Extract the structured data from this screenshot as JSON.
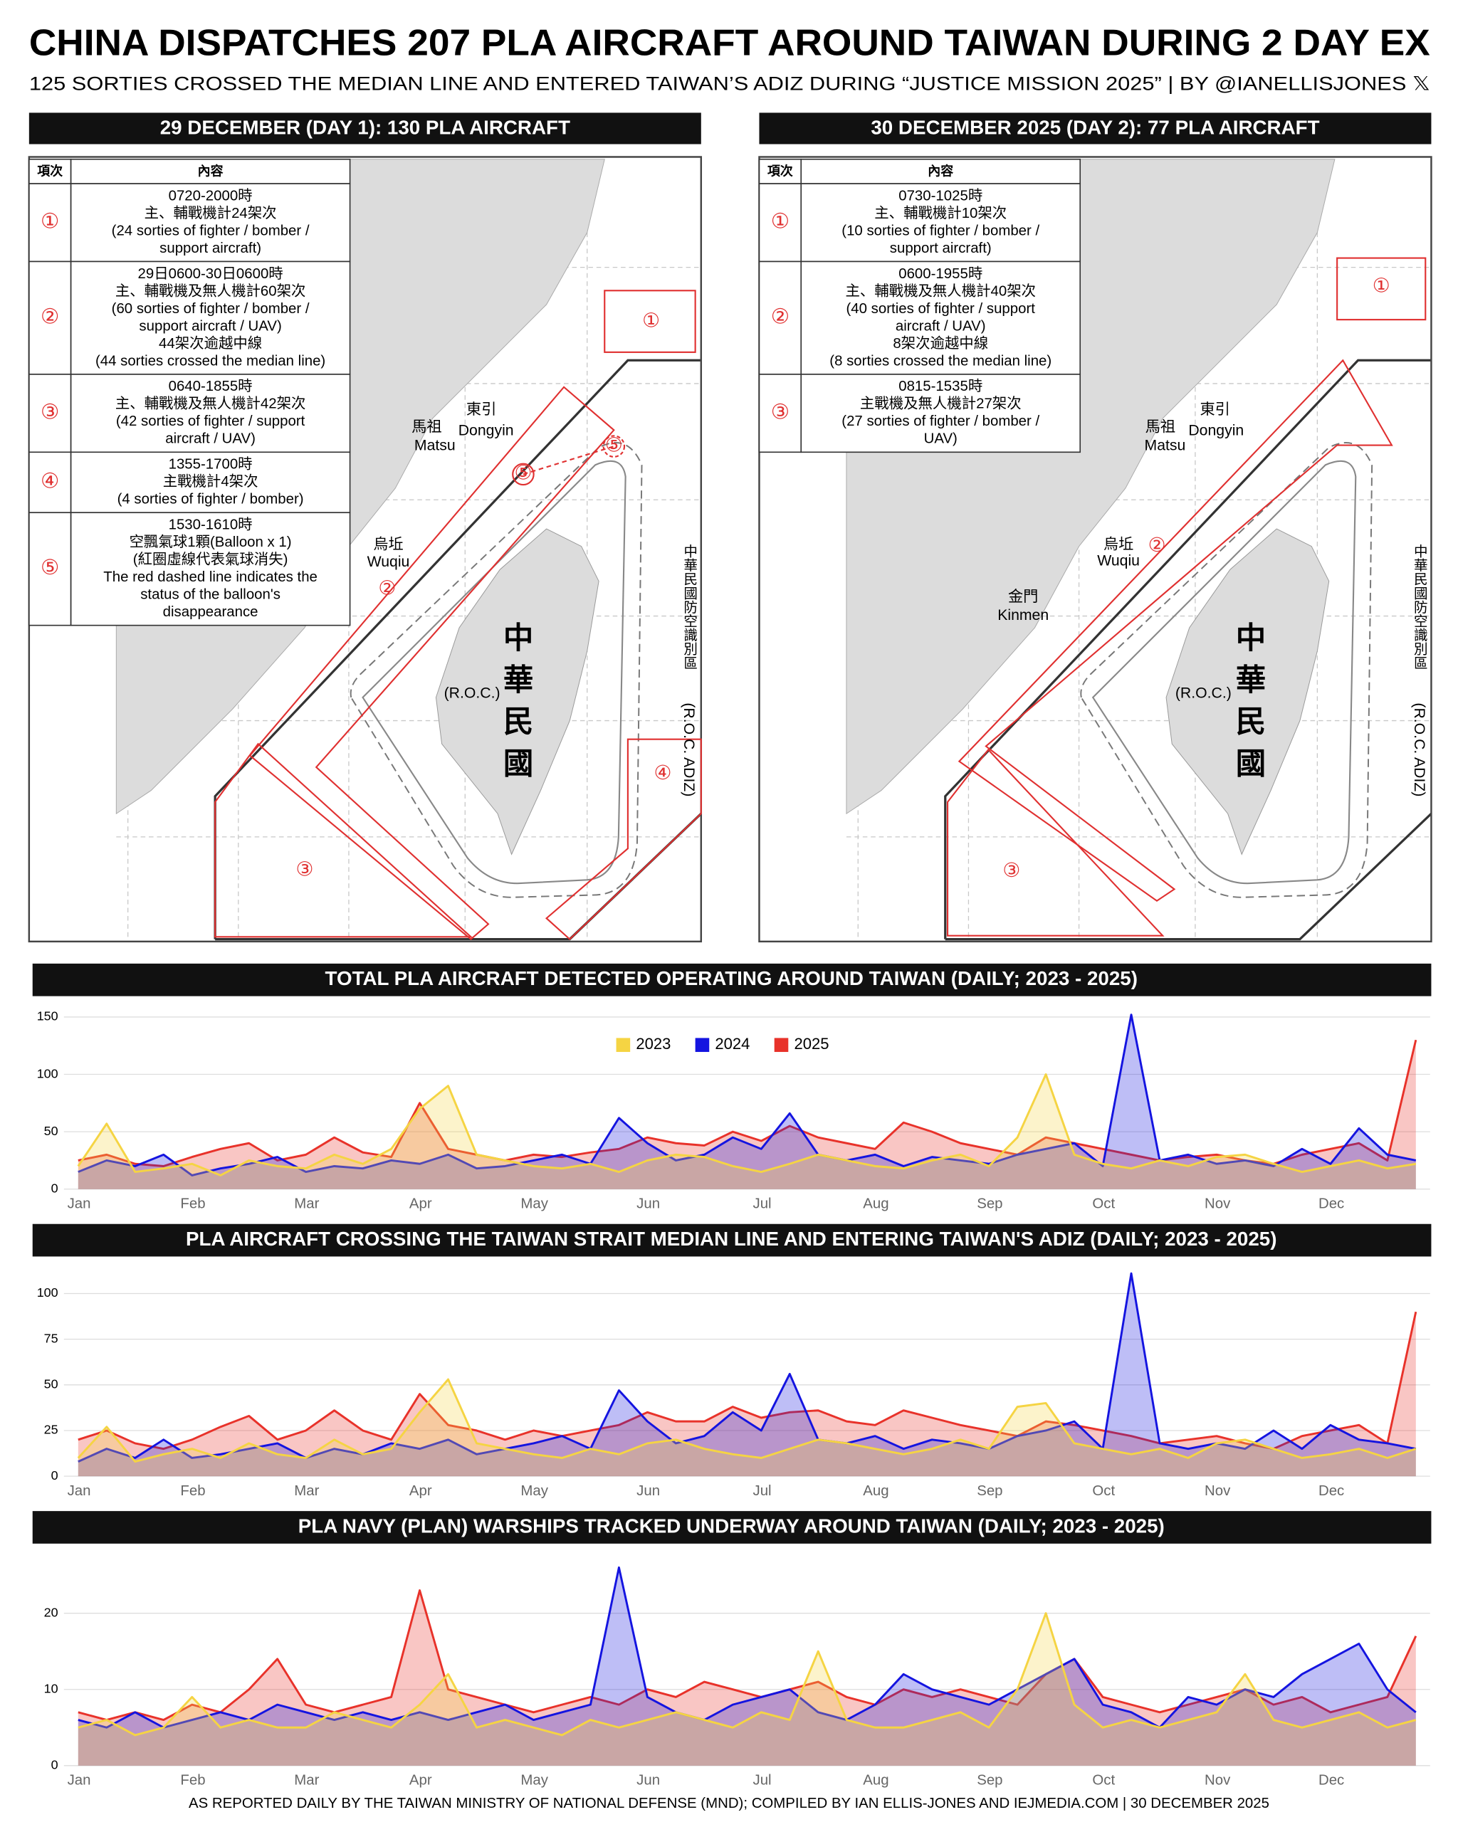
{
  "header": {
    "title": "CHINA DISPATCHES 207 PLA AIRCRAFT AROUND TAIWAN DURING 2 DAY EX",
    "subtitle": "125 SORTIES CROSSED THE MEDIAN LINE AND ENTERED TAIWAN’S ADIZ DURING “JUSTICE MISSION 2025” | BY @IANELLISJONES 𝕏"
  },
  "panels": [
    {
      "title": "29 DECEMBER (DAY 1): 130 PLA AIRCRAFT",
      "table_header": [
        "項次",
        "內容"
      ],
      "rows": [
        {
          "num": "①",
          "lines": [
            "0720-2000時",
            "主、輔戰機計24架次",
            "(24 sorties of fighter / bomber /",
            "support aircraft)"
          ]
        },
        {
          "num": "②",
          "lines": [
            "29日0600-30日0600時",
            "主、輔戰機及無人機計60架次",
            "(60 sorties of fighter / bomber /",
            "support aircraft / UAV)",
            "44架次逾越中線",
            "(44 sorties crossed the median line)"
          ]
        },
        {
          "num": "③",
          "lines": [
            "0640-1855時",
            "主、輔戰機及無人機計42架次",
            "(42 sorties of fighter / support",
            "aircraft /  UAV)"
          ]
        },
        {
          "num": "④",
          "lines": [
            "1355-1700時",
            "主戰機計4架次",
            "(4 sorties of fighter / bomber)"
          ]
        },
        {
          "num": "⑤",
          "lines": [
            "1530-1610時",
            "空飄氣球1顆(Balloon x 1)",
            "(紅圈虛線代表氣球消失)",
            "The red dashed line indicates the",
            "status of the balloon's",
            "disappearance"
          ]
        }
      ],
      "map_labels": [
        "①",
        "②",
        "③",
        "④",
        "⑤",
        "⑤",
        "馬祖",
        "Matsu",
        "東引",
        "Dongyin",
        "烏坵",
        "Wuqiu",
        "中華民國",
        "(R.O.C.)",
        "中華民國防空識別區",
        "(R.O.C. ADIZ)"
      ]
    },
    {
      "title": "30 DECEMBER 2025 (DAY 2): 77 PLA AIRCRAFT",
      "table_header": [
        "項次",
        "內容"
      ],
      "rows": [
        {
          "num": "①",
          "lines": [
            "0730-1025時",
            "主、輔戰機計10架次",
            "(10 sorties of fighter / bomber /",
            "support aircraft)"
          ]
        },
        {
          "num": "②",
          "lines": [
            "0600-1955時",
            "主、輔戰機及無人機計40架次",
            "(40 sorties of fighter / support",
            "aircraft / UAV)",
            "8架次逾越中線",
            "(8 sorties crossed the median line)"
          ]
        },
        {
          "num": "③",
          "lines": [
            "0815-1535時",
            "主戰機及無人機計27架次",
            "(27 sorties of fighter / bomber /",
            "UAV)"
          ]
        }
      ],
      "map_labels": [
        "①",
        "②",
        "③",
        "馬祖",
        "Matsu",
        "東引",
        "Dongyin",
        "烏坵",
        "Wuqiu",
        "金門",
        "Kinmen",
        "中華民國",
        "(R.O.C.)",
        "中華民國防空識別區",
        "(R.O.C. ADIZ)"
      ]
    }
  ],
  "chart_data": [
    {
      "type": "line",
      "title": "TOTAL PLA AIRCRAFT DETECTED OPERATING AROUND TAIWAN (DAILY; 2023 - 2025)",
      "categories": [
        "Jan",
        null,
        null,
        null,
        "Feb",
        null,
        null,
        null,
        "Mar",
        null,
        null,
        null,
        "Apr",
        null,
        null,
        null,
        "May",
        null,
        null,
        null,
        "Jun",
        null,
        null,
        null,
        "Jul",
        null,
        null,
        null,
        "Aug",
        null,
        null,
        null,
        "Sep",
        null,
        null,
        null,
        "Oct",
        null,
        null,
        null,
        "Nov",
        null,
        null,
        null,
        "Dec",
        null,
        null,
        null
      ],
      "series": [
        {
          "name": "2023",
          "color": "#f5d443",
          "values": [
            20,
            57,
            15,
            18,
            22,
            12,
            25,
            20,
            18,
            30,
            22,
            35,
            70,
            90,
            30,
            25,
            20,
            18,
            22,
            15,
            25,
            30,
            28,
            20,
            15,
            22,
            30,
            25,
            20,
            18,
            25,
            30,
            20,
            45,
            100,
            30,
            22,
            18,
            25,
            20,
            28,
            30,
            22,
            15,
            20,
            25,
            18,
            22
          ]
        },
        {
          "name": "2024",
          "color": "#1414e0",
          "values": [
            15,
            25,
            20,
            30,
            12,
            18,
            22,
            28,
            15,
            20,
            18,
            25,
            22,
            30,
            18,
            20,
            25,
            30,
            22,
            62,
            40,
            25,
            30,
            45,
            35,
            66,
            30,
            25,
            30,
            20,
            28,
            25,
            22,
            30,
            35,
            40,
            20,
            152,
            25,
            30,
            22,
            25,
            20,
            35,
            22,
            53,
            30,
            25
          ]
        },
        {
          "name": "2025",
          "color": "#e8322a",
          "values": [
            25,
            30,
            22,
            20,
            28,
            35,
            40,
            25,
            30,
            45,
            32,
            28,
            75,
            35,
            30,
            25,
            30,
            28,
            32,
            35,
            45,
            40,
            38,
            50,
            42,
            55,
            45,
            40,
            35,
            58,
            50,
            40,
            35,
            30,
            45,
            40,
            35,
            30,
            25,
            28,
            30,
            25,
            22,
            30,
            35,
            40,
            25,
            130
          ]
        }
      ],
      "ylim": [
        0,
        155
      ],
      "yticks": [
        0,
        50,
        100,
        150
      ],
      "grid": true,
      "legend": "top"
    },
    {
      "type": "line",
      "title": "PLA AIRCRAFT CROSSING THE TAIWAN STRAIT MEDIAN LINE AND ENTERING TAIWAN'S ADIZ (DAILY; 2023 - 2025)",
      "categories": [
        "Jan",
        null,
        null,
        null,
        "Feb",
        null,
        null,
        null,
        "Mar",
        null,
        null,
        null,
        "Apr",
        null,
        null,
        null,
        "May",
        null,
        null,
        null,
        "Jun",
        null,
        null,
        null,
        "Jul",
        null,
        null,
        null,
        "Aug",
        null,
        null,
        null,
        "Sep",
        null,
        null,
        null,
        "Oct",
        null,
        null,
        null,
        "Nov",
        null,
        null,
        null,
        "Dec",
        null,
        null,
        null
      ],
      "series": [
        {
          "name": "2023",
          "color": "#f5d443",
          "values": [
            10,
            27,
            8,
            12,
            15,
            10,
            18,
            12,
            10,
            20,
            12,
            15,
            35,
            53,
            18,
            15,
            12,
            10,
            15,
            12,
            18,
            20,
            15,
            12,
            10,
            15,
            20,
            18,
            15,
            12,
            15,
            20,
            15,
            38,
            40,
            18,
            15,
            12,
            15,
            10,
            18,
            20,
            15,
            10,
            12,
            15,
            10,
            15
          ]
        },
        {
          "name": "2024",
          "color": "#1414e0",
          "values": [
            8,
            15,
            10,
            20,
            10,
            12,
            15,
            18,
            10,
            15,
            12,
            18,
            15,
            20,
            12,
            15,
            18,
            22,
            15,
            47,
            30,
            18,
            22,
            35,
            25,
            56,
            20,
            18,
            22,
            15,
            20,
            18,
            15,
            22,
            25,
            30,
            15,
            111,
            18,
            15,
            18,
            15,
            25,
            15,
            28,
            20,
            18,
            15
          ]
        },
        {
          "name": "2025",
          "color": "#e8322a",
          "values": [
            20,
            25,
            18,
            15,
            20,
            27,
            33,
            20,
            25,
            36,
            25,
            20,
            45,
            28,
            25,
            20,
            25,
            22,
            25,
            28,
            35,
            30,
            30,
            38,
            32,
            35,
            36,
            30,
            28,
            36,
            32,
            28,
            25,
            22,
            30,
            28,
            25,
            22,
            18,
            20,
            22,
            18,
            15,
            22,
            25,
            28,
            18,
            90
          ]
        }
      ],
      "ylim": [
        0,
        112
      ],
      "yticks": [
        0,
        25,
        50,
        75,
        100
      ],
      "grid": true
    },
    {
      "type": "line",
      "title": "PLA NAVY (PLAN) WARSHIPS TRACKED UNDERWAY AROUND TAIWAN (DAILY; 2023 - 2025)",
      "categories": [
        "Jan",
        null,
        null,
        null,
        "Feb",
        null,
        null,
        null,
        "Mar",
        null,
        null,
        null,
        "Apr",
        null,
        null,
        null,
        "May",
        null,
        null,
        null,
        "Jun",
        null,
        null,
        null,
        "Jul",
        null,
        null,
        null,
        "Aug",
        null,
        null,
        null,
        "Sep",
        null,
        null,
        null,
        "Oct",
        null,
        null,
        null,
        "Nov",
        null,
        null,
        null,
        "Dec",
        null,
        null,
        null
      ],
      "series": [
        {
          "name": "2023",
          "color": "#f5d443",
          "values": [
            5,
            6,
            4,
            5,
            9,
            5,
            6,
            5,
            5,
            7,
            6,
            5,
            8,
            12,
            5,
            6,
            5,
            4,
            6,
            5,
            6,
            7,
            6,
            5,
            7,
            6,
            15,
            6,
            5,
            5,
            6,
            7,
            5,
            10,
            20,
            8,
            5,
            6,
            5,
            6,
            7,
            12,
            6,
            5,
            6,
            7,
            5,
            6
          ]
        },
        {
          "name": "2024",
          "color": "#1414e0",
          "values": [
            6,
            5,
            7,
            5,
            6,
            7,
            6,
            8,
            7,
            6,
            7,
            6,
            7,
            6,
            7,
            8,
            6,
            7,
            8,
            26,
            9,
            7,
            6,
            8,
            9,
            10,
            7,
            6,
            8,
            12,
            10,
            9,
            8,
            10,
            12,
            14,
            8,
            7,
            5,
            9,
            8,
            10,
            9,
            12,
            14,
            16,
            10,
            7
          ]
        },
        {
          "name": "2025",
          "color": "#e8322a",
          "values": [
            7,
            6,
            7,
            6,
            8,
            7,
            10,
            14,
            8,
            7,
            8,
            9,
            23,
            10,
            9,
            8,
            7,
            8,
            9,
            8,
            10,
            9,
            11,
            10,
            9,
            10,
            11,
            9,
            8,
            10,
            9,
            10,
            9,
            8,
            12,
            14,
            9,
            8,
            7,
            8,
            9,
            10,
            8,
            9,
            7,
            8,
            9,
            17
          ]
        }
      ],
      "ylim": [
        0,
        27
      ],
      "yticks": [
        0,
        10,
        20
      ],
      "grid": true
    }
  ],
  "footer": "AS REPORTED DAILY BY THE TAIWAN MINISTRY OF NATIONAL DEFENSE (MND); COMPILED BY IAN ELLIS-JONES AND IEJMEDIA.COM | 30 DECEMBER 2025"
}
